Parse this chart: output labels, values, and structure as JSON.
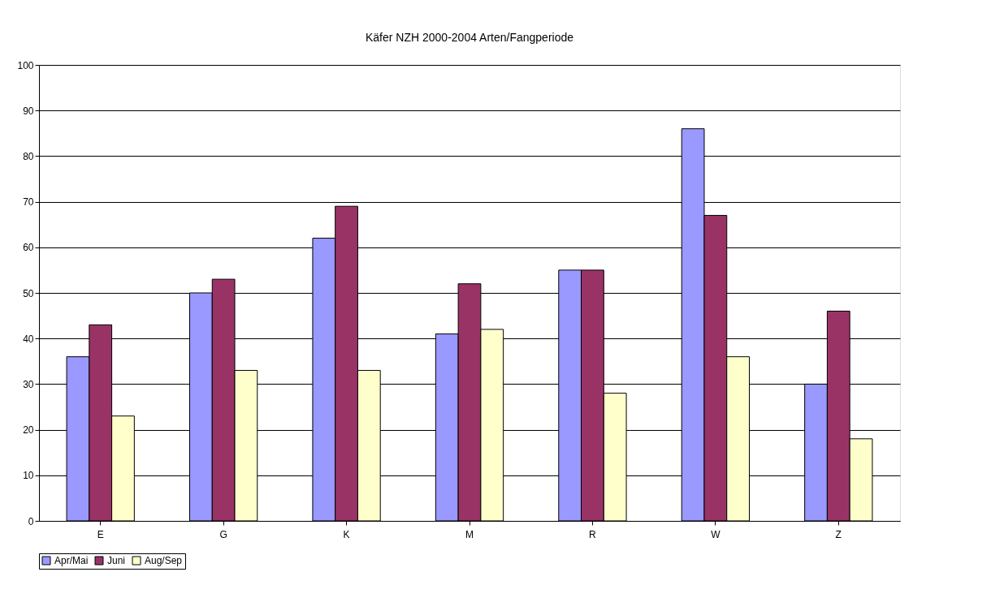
{
  "chart_data": {
    "type": "bar",
    "title": "Käfer NZH 2000-2004 Arten/Fangperiode",
    "categories": [
      "E",
      "G",
      "K",
      "M",
      "R",
      "W",
      "Z"
    ],
    "series": [
      {
        "name": "Apr/Mai",
        "color": "#9999ff",
        "values": [
          36,
          50,
          62,
          41,
          55,
          86,
          30
        ]
      },
      {
        "name": "Juni",
        "color": "#993366",
        "values": [
          43,
          53,
          69,
          52,
          55,
          67,
          46
        ]
      },
      {
        "name": "Aug/Sep",
        "color": "#ffffcc",
        "values": [
          23,
          33,
          33,
          42,
          28,
          36,
          18
        ]
      }
    ],
    "ylim": [
      0,
      100
    ],
    "yticks": [
      0,
      10,
      20,
      30,
      40,
      50,
      60,
      70,
      80,
      90,
      100
    ],
    "grid": "y",
    "legend": "bottom"
  }
}
